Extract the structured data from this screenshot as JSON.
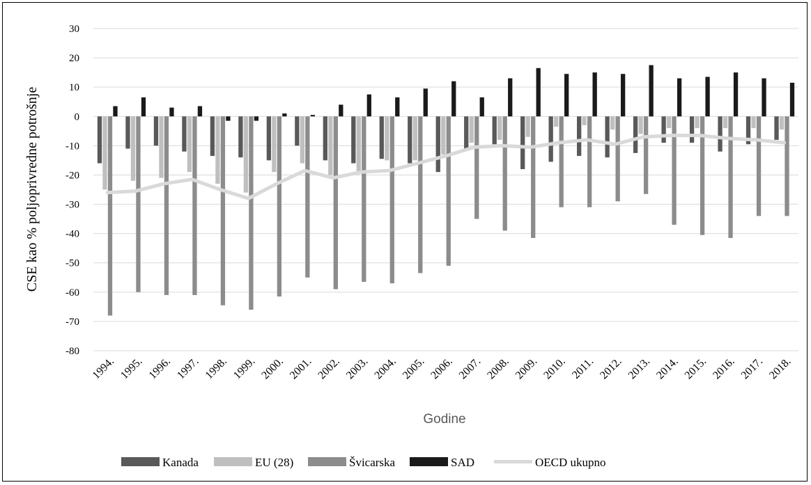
{
  "chart_data": {
    "type": "bar",
    "title": "",
    "xlabel": "Godine",
    "ylabel": "CSE kao % poljoprivredne potrošnje",
    "ylim": [
      -80,
      30
    ],
    "yticks": [
      30,
      20,
      10,
      0,
      -10,
      -20,
      -30,
      -40,
      -50,
      -60,
      -70,
      -80
    ],
    "grid": true,
    "legend_position": "bottom",
    "categories": [
      "1994.",
      "1995.",
      "1996.",
      "1997.",
      "1998.",
      "1999.",
      "2000.",
      "2001.",
      "2002.",
      "2003.",
      "2004.",
      "2005.",
      "2006.",
      "2007.",
      "2008.",
      "2009.",
      "2010.",
      "2011.",
      "2012.",
      "2013.",
      "2014.",
      "2015.",
      "2016.",
      "2017.",
      "2018."
    ],
    "series": [
      {
        "name": "Kanada",
        "kind": "bar",
        "color": "#595959",
        "values": [
          -16,
          -11,
          -10,
          -12,
          -13.5,
          -14,
          -15,
          -10,
          -15,
          -16,
          -14.5,
          -16,
          -19,
          -11,
          -9.5,
          -18,
          -15.5,
          -13.5,
          -14,
          -12.5,
          -9,
          -9,
          -12,
          -9.5,
          -8
        ]
      },
      {
        "name": "EU (28)",
        "kind": "bar",
        "color": "#bfbfbf",
        "values": [
          -25,
          -22,
          -21,
          -19,
          -23,
          -26,
          -19,
          -16,
          -20,
          -19,
          -15,
          -15,
          -13,
          -9,
          -8,
          -7,
          -3.5,
          -3,
          -4.5,
          -6,
          -4,
          -4,
          -4,
          -4,
          -4.5
        ]
      },
      {
        "name": "Švicarska",
        "kind": "bar",
        "color": "#8c8c8c",
        "values": [
          -68,
          -60,
          -61,
          -61,
          -64.5,
          -66,
          -61.5,
          -55,
          -59,
          -56.5,
          -57,
          -53.5,
          -51,
          -35,
          -39,
          -41.5,
          -31,
          -31,
          -29,
          -26.5,
          -37,
          -40.5,
          -41.5,
          -34,
          -34
        ]
      },
      {
        "name": "SAD",
        "kind": "bar",
        "color": "#1a1a1a",
        "values": [
          3.5,
          6.5,
          3,
          3.5,
          -1.5,
          -1.5,
          1,
          0.5,
          4,
          7.5,
          6.5,
          9.5,
          12,
          6.5,
          13,
          16.5,
          14.5,
          15,
          14.5,
          17.5,
          13,
          13.5,
          15,
          13,
          11.5
        ]
      },
      {
        "name": "OECD ukupno",
        "kind": "line",
        "color": "#d9d9d9",
        "values": [
          -26,
          -25.5,
          -23,
          -21.5,
          -25,
          -28,
          -23,
          -18.5,
          -21,
          -19,
          -18.5,
          -16,
          -13.5,
          -10.5,
          -10,
          -10.5,
          -9,
          -8,
          -9.5,
          -7,
          -6.5,
          -6.5,
          -7.5,
          -8,
          -9
        ]
      }
    ]
  }
}
